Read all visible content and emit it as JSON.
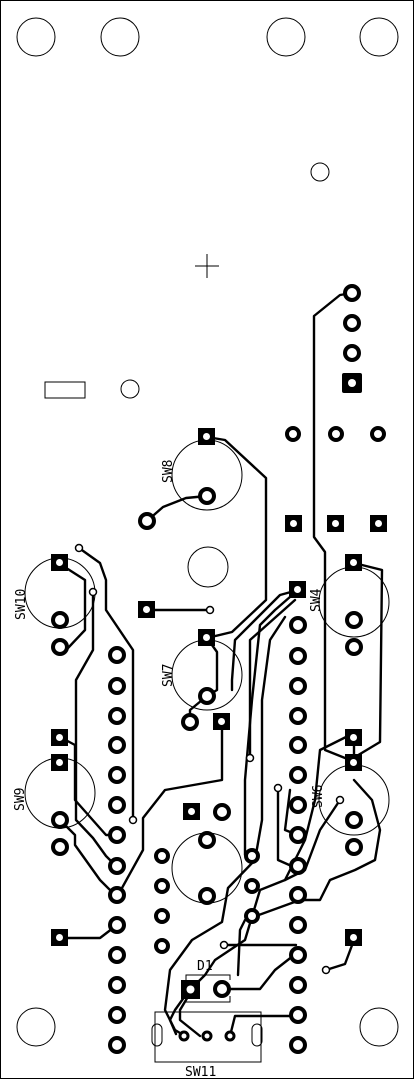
{
  "pcb": {
    "colors": {
      "background": "#ffffff",
      "copper": "#000000",
      "outline": "#000000",
      "drill": "#ffffff"
    },
    "labels": {
      "sw4": "SW4",
      "sw6": "SW6",
      "sw7": "SW7",
      "sw8": "SW8",
      "sw9": "SW9",
      "sw10": "SW10",
      "sw11": "SW11",
      "d1": "D1"
    }
  }
}
